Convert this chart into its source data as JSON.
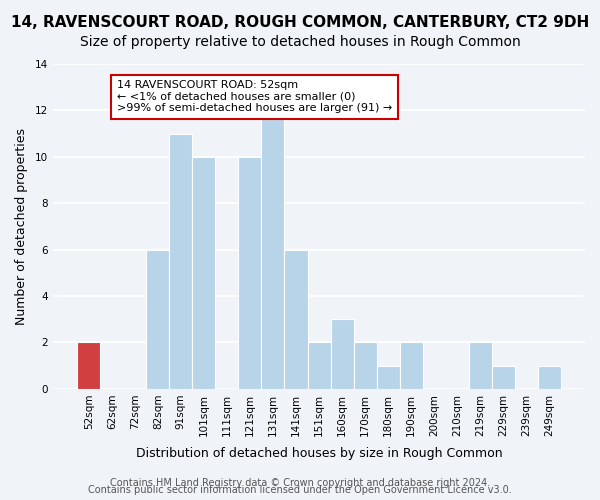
{
  "title": "14, RAVENSCOURT ROAD, ROUGH COMMON, CANTERBURY, CT2 9DH",
  "subtitle": "Size of property relative to detached houses in Rough Common",
  "xlabel": "Distribution of detached houses by size in Rough Common",
  "ylabel": "Number of detached properties",
  "bar_color": "#b8d4e8",
  "bar_edge_color": "#ffffff",
  "categories": [
    "52sqm",
    "62sqm",
    "72sqm",
    "82sqm",
    "91sqm",
    "101sqm",
    "111sqm",
    "121sqm",
    "131sqm",
    "141sqm",
    "151sqm",
    "160sqm",
    "170sqm",
    "180sqm",
    "190sqm",
    "200sqm",
    "210sqm",
    "219sqm",
    "229sqm",
    "239sqm",
    "249sqm"
  ],
  "values": [
    2,
    0,
    0,
    6,
    11,
    10,
    0,
    10,
    12,
    6,
    2,
    3,
    2,
    1,
    2,
    0,
    0,
    2,
    1,
    0,
    1
  ],
  "ylim": [
    0,
    14
  ],
  "yticks": [
    0,
    2,
    4,
    6,
    8,
    10,
    12,
    14
  ],
  "annotation_title": "14 RAVENSCOURT ROAD: 52sqm",
  "annotation_line1": "← <1% of detached houses are smaller (0)",
  "annotation_line2": ">99% of semi-detached houses are larger (91) →",
  "annotation_box_color": "#ffffff",
  "annotation_box_edge": "#cc0000",
  "highlight_bar_index": 0,
  "highlight_bar_color": "#d04040",
  "footer1": "Contains HM Land Registry data © Crown copyright and database right 2024.",
  "footer2": "Contains public sector information licensed under the Open Government Licence v3.0.",
  "background_color": "#f0f4f8",
  "plot_background": "#f0f4f8",
  "grid_color": "#ffffff",
  "title_fontsize": 11,
  "subtitle_fontsize": 10,
  "axis_label_fontsize": 9,
  "tick_fontsize": 7.5,
  "footer_fontsize": 7
}
